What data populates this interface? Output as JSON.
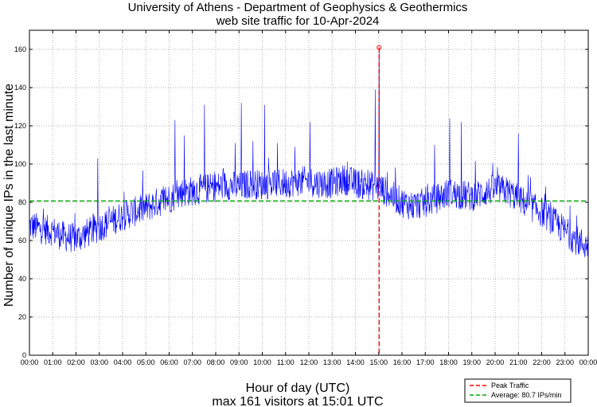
{
  "chart_data": {
    "type": "line",
    "title": [
      "University of Athens - Department of Geophysics & Geothermics",
      "web site traffic for 10-Apr-2024"
    ],
    "xlabel": "Hour of day (UTC)",
    "subtitle": "max 161 visitors at 15:01 UTC",
    "ylabel": "Number of unique IPs in the last minute",
    "x_ticks": [
      "00:00",
      "01:00",
      "02:00",
      "03:00",
      "04:00",
      "05:00",
      "06:00",
      "07:00",
      "08:00",
      "09:00",
      "10:00",
      "11:00",
      "12:00",
      "13:00",
      "14:00",
      "15:00",
      "16:00",
      "17:00",
      "18:00",
      "19:00",
      "20:00",
      "21:00",
      "22:00",
      "23:00",
      "00:00"
    ],
    "y_ticks": [
      0,
      20,
      40,
      60,
      80,
      100,
      120,
      140,
      160
    ],
    "xlim_hours": [
      0,
      24
    ],
    "ylim": [
      0,
      170
    ],
    "grid": true,
    "series": [
      {
        "name": "Traffic",
        "color": "#0000ff",
        "sampling": "approximate hourly-anchor profile of per-minute unique IPs",
        "x_hours": [
          0,
          0.5,
          1,
          1.5,
          2,
          2.5,
          3,
          3.5,
          4,
          4.5,
          5,
          5.5,
          6,
          6.5,
          7,
          7.5,
          8,
          8.5,
          9,
          9.5,
          10,
          10.5,
          11,
          11.5,
          12,
          12.5,
          13,
          13.5,
          14,
          14.5,
          15,
          15.5,
          16,
          16.5,
          17,
          17.5,
          18,
          18.5,
          19,
          19.5,
          20,
          20.5,
          21,
          21.5,
          22,
          22.5,
          23,
          23.5,
          24
        ],
        "values": [
          68,
          66,
          65,
          62,
          61,
          64,
          67,
          70,
          73,
          75,
          77,
          80,
          82,
          85,
          86,
          87,
          88,
          89,
          88,
          90,
          89,
          90,
          90,
          91,
          91,
          90,
          90,
          92,
          90,
          89,
          88,
          84,
          80,
          78,
          80,
          82,
          85,
          84,
          83,
          85,
          87,
          86,
          82,
          78,
          75,
          70,
          65,
          60,
          57
        ]
      }
    ],
    "spikes": [
      {
        "x_hours": 2.93,
        "value": 103
      },
      {
        "x_hours": 6.25,
        "value": 123
      },
      {
        "x_hours": 6.65,
        "value": 115
      },
      {
        "x_hours": 7.52,
        "value": 131
      },
      {
        "x_hours": 8.83,
        "value": 111
      },
      {
        "x_hours": 9.1,
        "value": 132
      },
      {
        "x_hours": 9.6,
        "value": 112
      },
      {
        "x_hours": 10.1,
        "value": 131
      },
      {
        "x_hours": 10.65,
        "value": 111
      },
      {
        "x_hours": 11.4,
        "value": 109
      },
      {
        "x_hours": 12.05,
        "value": 122
      },
      {
        "x_hours": 14.85,
        "value": 139
      },
      {
        "x_hours": 17.4,
        "value": 110
      },
      {
        "x_hours": 18.05,
        "value": 124
      },
      {
        "x_hours": 18.55,
        "value": 122
      },
      {
        "x_hours": 21.0,
        "value": 116
      },
      {
        "x_hours": 15.02,
        "value": 161
      }
    ],
    "peak": {
      "x_hours": 15.02,
      "value": 161,
      "color": "#ff0000",
      "label": "Peak Traffic"
    },
    "average": {
      "value": 80.7,
      "color": "#00aa00",
      "label": "Average: 80.7 IPs/min"
    },
    "legend_position": "bottom-right"
  }
}
